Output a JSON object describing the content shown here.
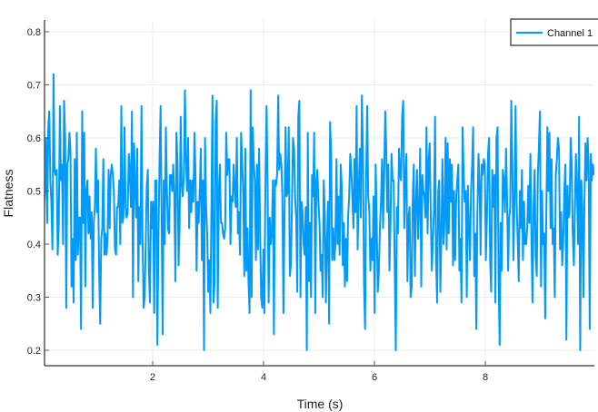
{
  "chart_data": {
    "type": "line",
    "title": "",
    "xlabel": "Time (s)",
    "ylabel": "Flatness",
    "xlim": [
      0.05,
      9.95
    ],
    "ylim": [
      0.175,
      0.82
    ],
    "x_ticks": [
      2,
      4,
      6,
      8
    ],
    "x_tick_labels": [
      "2",
      "4",
      "6",
      "8"
    ],
    "y_ticks": [
      0.2,
      0.3,
      0.4,
      0.5,
      0.6,
      0.7,
      0.8
    ],
    "y_tick_labels": [
      "0.2",
      "0.3",
      "0.4",
      "0.5",
      "0.6",
      "0.7",
      "0.8"
    ],
    "grid": true,
    "legend_position": "top-right",
    "series": [
      {
        "name": "Channel 1",
        "color": "#009AFA",
        "x_start": 0.02,
        "x_step": 0.02,
        "values": [
          0.44,
          0.47,
          0.5,
          0.6,
          0.44,
          0.62,
          0.65,
          0.52,
          0.48,
          0.39,
          0.72,
          0.54,
          0.53,
          0.54,
          0.38,
          0.44,
          0.66,
          0.52,
          0.55,
          0.4,
          0.67,
          0.6,
          0.28,
          0.55,
          0.56,
          0.61,
          0.58,
          0.32,
          0.41,
          0.29,
          0.56,
          0.37,
          0.61,
          0.38,
          0.45,
          0.45,
          0.24,
          0.65,
          0.44,
          0.61,
          0.32,
          0.5,
          0.52,
          0.42,
          0.49,
          0.41,
          0.46,
          0.28,
          0.44,
          0.47,
          0.58,
          0.46,
          0.52,
          0.36,
          0.25,
          0.41,
          0.43,
          0.56,
          0.38,
          0.42,
          0.38,
          0.41,
          0.54,
          0.43,
          0.53,
          0.55,
          0.53,
          0.5,
          0.39,
          0.38,
          0.47,
          0.47,
          0.52,
          0.4,
          0.66,
          0.44,
          0.45,
          0.62,
          0.47,
          0.45,
          0.46,
          0.57,
          0.54,
          0.47,
          0.65,
          0.3,
          0.59,
          0.51,
          0.45,
          0.58,
          0.33,
          0.47,
          0.4,
          0.66,
          0.42,
          0.28,
          0.3,
          0.4,
          0.51,
          0.54,
          0.35,
          0.29,
          0.48,
          0.43,
          0.48,
          0.27,
          0.52,
          0.52,
          0.21,
          0.41,
          0.55,
          0.66,
          0.46,
          0.23,
          0.52,
          0.4,
          0.62,
          0.51,
          0.43,
          0.42,
          0.53,
          0.53,
          0.5,
          0.55,
          0.49,
          0.33,
          0.61,
          0.56,
          0.36,
          0.43,
          0.64,
          0.51,
          0.49,
          0.53,
          0.69,
          0.56,
          0.5,
          0.6,
          0.43,
          0.52,
          0.46,
          0.52,
          0.48,
          0.61,
          0.53,
          0.35,
          0.48,
          0.44,
          0.5,
          0.58,
          0.37,
          0.52,
          0.2,
          0.6,
          0.47,
          0.42,
          0.31,
          0.37,
          0.27,
          0.46,
          0.68,
          0.29,
          0.33,
          0.63,
          0.67,
          0.28,
          0.5,
          0.55,
          0.44,
          0.44,
          0.42,
          0.41,
          0.43,
          0.61,
          0.53,
          0.56,
          0.56,
          0.4,
          0.49,
          0.48,
          0.55,
          0.5,
          0.47,
          0.6,
          0.42,
          0.46,
          0.38,
          0.61,
          0.56,
          0.5,
          0.34,
          0.58,
          0.35,
          0.43,
          0.33,
          0.27,
          0.69,
          0.3,
          0.62,
          0.55,
          0.52,
          0.37,
          0.55,
          0.39,
          0.58,
          0.41,
          0.3,
          0.28,
          0.39,
          0.27,
          0.52,
          0.66,
          0.52,
          0.29,
          0.45,
          0.4,
          0.42,
          0.52,
          0.23,
          0.52,
          0.51,
          0.53,
          0.68,
          0.54,
          0.57,
          0.55,
          0.49,
          0.27,
          0.46,
          0.62,
          0.49,
          0.5,
          0.62,
          0.34,
          0.36,
          0.47,
          0.6,
          0.58,
          0.49,
          0.45,
          0.31,
          0.64,
          0.67,
          0.3,
          0.48,
          0.46,
          0.4,
          0.38,
          0.47,
          0.2,
          0.61,
          0.33,
          0.44,
          0.3,
          0.53,
          0.49,
          0.61,
          0.27,
          0.52,
          0.54,
          0.48,
          0.44,
          0.35,
          0.38,
          0.3,
          0.52,
          0.46,
          0.29,
          0.4,
          0.48,
          0.25,
          0.63,
          0.57,
          0.37,
          0.43,
          0.37,
          0.4,
          0.56,
          0.4,
          0.49,
          0.38,
          0.55,
          0.51,
          0.36,
          0.44,
          0.32,
          0.41,
          0.33,
          0.45,
          0.49,
          0.57,
          0.54,
          0.49,
          0.43,
          0.56,
          0.46,
          0.66,
          0.39,
          0.5,
          0.58,
          0.45,
          0.68,
          0.57,
          0.33,
          0.24,
          0.53,
          0.66,
          0.49,
          0.46,
          0.35,
          0.41,
          0.37,
          0.49,
          0.27,
          0.55,
          0.44,
          0.31,
          0.35,
          0.43,
          0.48,
          0.56,
          0.43,
          0.53,
          0.65,
          0.58,
          0.46,
          0.55,
          0.35,
          0.44,
          0.57,
          0.52,
          0.52,
          0.36,
          0.2,
          0.47,
          0.42,
          0.58,
          0.53,
          0.52,
          0.64,
          0.67,
          0.43,
          0.53,
          0.57,
          0.33,
          0.45,
          0.47,
          0.3,
          0.32,
          0.49,
          0.55,
          0.34,
          0.48,
          0.54,
          0.41,
          0.47,
          0.58,
          0.32,
          0.53,
          0.5,
          0.49,
          0.45,
          0.62,
          0.42,
          0.56,
          0.59,
          0.45,
          0.35,
          0.41,
          0.46,
          0.64,
          0.37,
          0.29,
          0.5,
          0.52,
          0.31,
          0.42,
          0.56,
          0.4,
          0.44,
          0.6,
          0.39,
          0.59,
          0.42,
          0.56,
          0.48,
          0.55,
          0.36,
          0.5,
          0.37,
          0.49,
          0.52,
          0.55,
          0.35,
          0.41,
          0.29,
          0.62,
          0.54,
          0.48,
          0.5,
          0.3,
          0.51,
          0.43,
          0.37,
          0.5,
          0.55,
          0.62,
          0.34,
          0.42,
          0.24,
          0.46,
          0.57,
          0.52,
          0.38,
          0.55,
          0.53,
          0.56,
          0.55,
          0.37,
          0.45,
          0.57,
          0.6,
          0.37,
          0.31,
          0.54,
          0.47,
          0.53,
          0.29,
          0.6,
          0.62,
          0.33,
          0.21,
          0.44,
          0.35,
          0.54,
          0.52,
          0.46,
          0.58,
          0.49,
          0.35,
          0.45,
          0.47,
          0.67,
          0.54,
          0.37,
          0.48,
          0.66,
          0.48,
          0.41,
          0.33,
          0.5,
          0.43,
          0.54,
          0.37,
          0.48,
          0.4,
          0.4,
          0.43,
          0.51,
          0.44,
          0.57,
          0.41,
          0.29,
          0.47,
          0.54,
          0.38,
          0.34,
          0.53,
          0.58,
          0.65,
          0.32,
          0.5,
          0.4,
          0.42,
          0.26,
          0.45,
          0.62,
          0.5,
          0.61,
          0.43,
          0.56,
          0.4,
          0.43,
          0.3,
          0.53,
          0.56,
          0.6,
          0.58,
          0.39,
          0.46,
          0.36,
          0.4,
          0.5,
          0.55,
          0.22,
          0.51,
          0.45,
          0.46,
          0.6,
          0.55,
          0.42,
          0.36,
          0.47,
          0.57,
          0.5,
          0.4,
          0.64,
          0.2,
          0.52,
          0.47,
          0.3,
          0.48,
          0.59,
          0.52,
          0.6,
          0.55,
          0.24,
          0.57,
          0.52,
          0.55,
          0.53
        ]
      }
    ]
  },
  "legend": {
    "items": [
      {
        "label": "Channel 1",
        "color": "#009AFA"
      }
    ]
  },
  "axes": {
    "x_title": "Time (s)",
    "y_title": "Flatness"
  }
}
